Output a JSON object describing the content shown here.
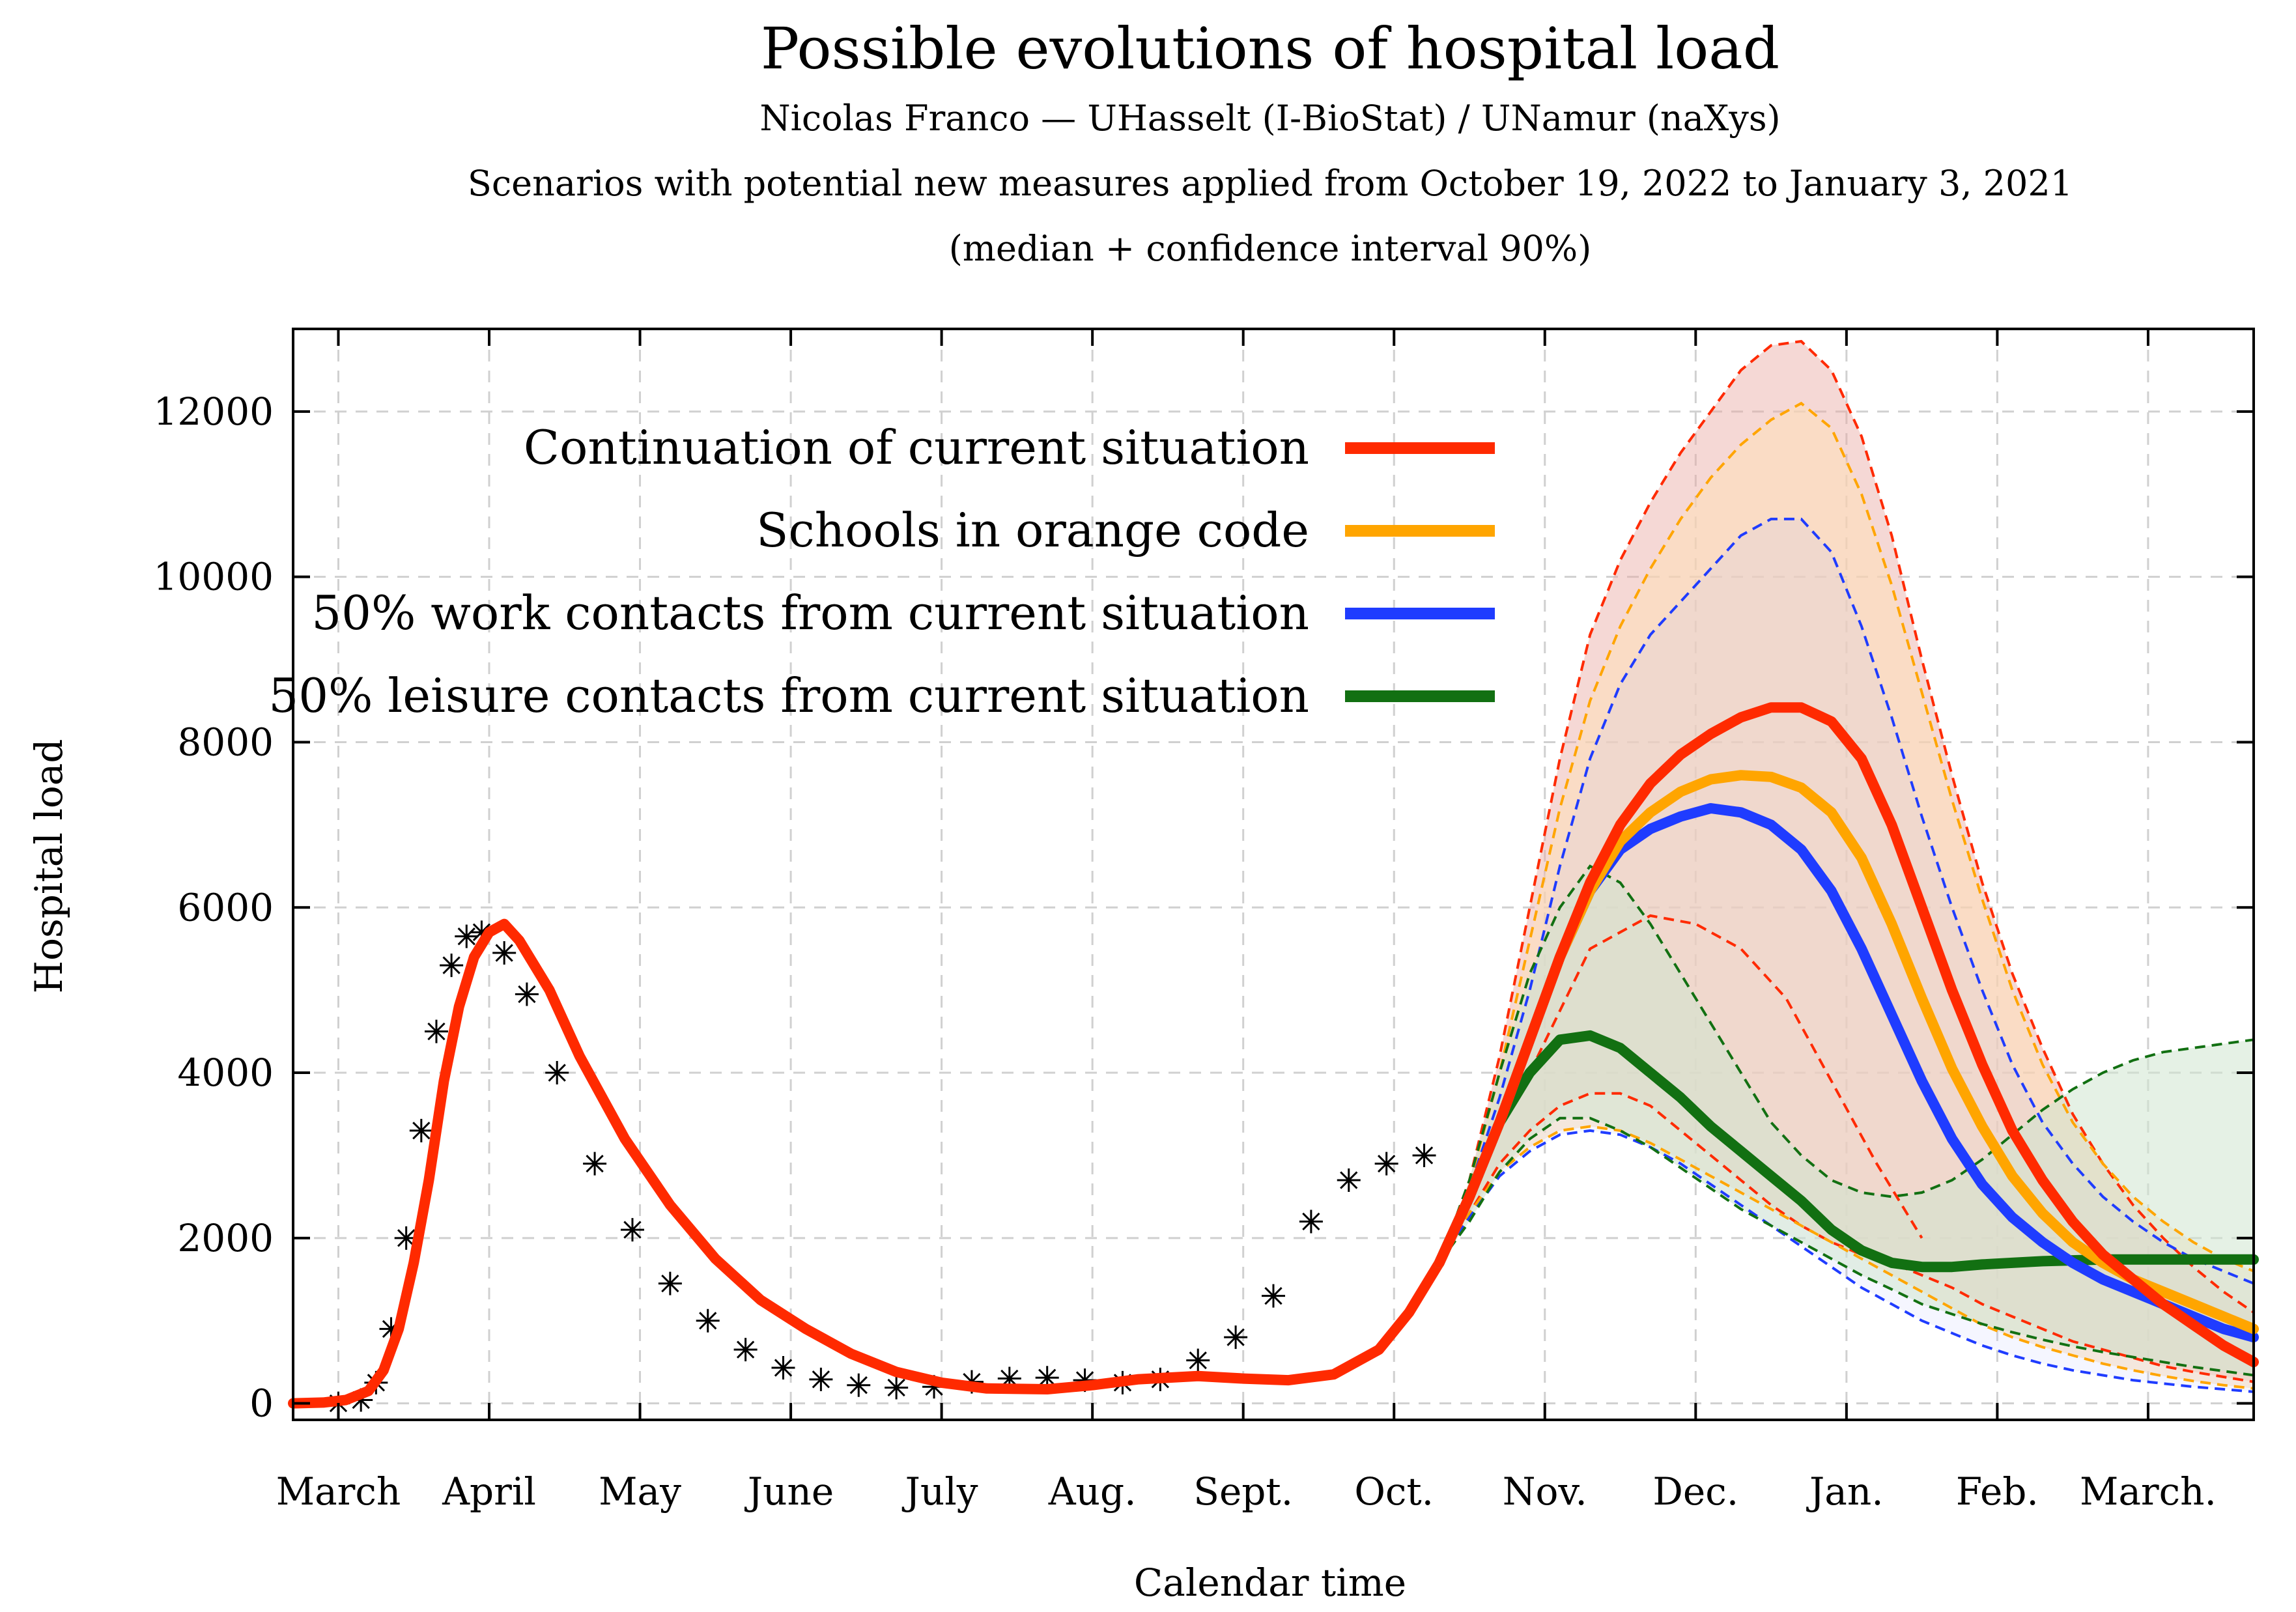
{
  "chart_data": {
    "type": "line",
    "title": "Possible evolutions of hospital load",
    "subtitle_lines": [
      "Nicolas Franco — UHasselt (I-BioStat) / UNamur (naXys)",
      "Scenarios with potential new measures applied from October 19, 2022 to January 3, 2021",
      "(median + confidence interval 90%)"
    ],
    "xlabel": "Calendar time",
    "ylabel": "Hospital load",
    "xlim": [
      0,
      13
    ],
    "ylim": [
      -200,
      13000
    ],
    "grid": true,
    "legend_placement": "top-center",
    "x_ticks": [
      {
        "x": 0.3,
        "label": "March"
      },
      {
        "x": 1.3,
        "label": "April"
      },
      {
        "x": 2.3,
        "label": "May"
      },
      {
        "x": 3.3,
        "label": "June"
      },
      {
        "x": 4.3,
        "label": "July"
      },
      {
        "x": 5.3,
        "label": "Aug."
      },
      {
        "x": 6.3,
        "label": "Sept."
      },
      {
        "x": 7.3,
        "label": "Oct."
      },
      {
        "x": 8.3,
        "label": "Nov."
      },
      {
        "x": 9.3,
        "label": "Dec."
      },
      {
        "x": 10.3,
        "label": "Jan."
      },
      {
        "x": 11.3,
        "label": "Feb."
      },
      {
        "x": 12.3,
        "label": "March."
      }
    ],
    "y_ticks": [
      {
        "y": 0,
        "label": "0"
      },
      {
        "y": 2000,
        "label": "2000"
      },
      {
        "y": 4000,
        "label": "4000"
      },
      {
        "y": 6000,
        "label": "6000"
      },
      {
        "y": 8000,
        "label": "8000"
      },
      {
        "y": 10000,
        "label": "10000"
      },
      {
        "y": 12000,
        "label": "12000"
      }
    ],
    "observed": {
      "marker": "star",
      "x": [
        0.3,
        0.45,
        0.55,
        0.65,
        0.75,
        0.85,
        0.95,
        1.05,
        1.15,
        1.25,
        1.4,
        1.55,
        1.75,
        2.0,
        2.25,
        2.5,
        2.75,
        3.0,
        3.25,
        3.5,
        3.75,
        4.0,
        4.25,
        4.5,
        4.75,
        5.0,
        5.25,
        5.5,
        5.75,
        6.0,
        6.25,
        6.5,
        6.75,
        7.0,
        7.25,
        7.5
      ],
      "y": [
        0,
        40,
        250,
        900,
        2000,
        3300,
        4500,
        5300,
        5650,
        5700,
        5450,
        4950,
        4000,
        2900,
        2100,
        1450,
        1000,
        650,
        430,
        290,
        220,
        190,
        200,
        260,
        300,
        310,
        280,
        250,
        290,
        520,
        800,
        1300,
        2200,
        2700,
        2900,
        3000
      ]
    },
    "fitted": {
      "name": "",
      "color": "#ff2a00",
      "x": [
        0.0,
        0.2,
        0.35,
        0.5,
        0.6,
        0.7,
        0.8,
        0.9,
        1.0,
        1.1,
        1.2,
        1.3,
        1.4,
        1.5,
        1.7,
        1.9,
        2.2,
        2.5,
        2.8,
        3.1,
        3.4,
        3.7,
        4.0,
        4.3,
        4.6,
        5.0,
        5.3,
        5.6,
        6.0,
        6.3,
        6.6,
        6.9,
        7.2,
        7.4,
        7.6
      ],
      "y": [
        0,
        10,
        40,
        150,
        400,
        900,
        1700,
        2700,
        3900,
        4800,
        5400,
        5700,
        5800,
        5600,
        5000,
        4200,
        3200,
        2400,
        1750,
        1250,
        900,
        600,
        380,
        250,
        180,
        170,
        220,
        290,
        330,
        300,
        280,
        350,
        650,
        1100,
        1700
      ]
    },
    "scenarios": [
      {
        "name": "Continuation of current situation",
        "color": "#ff2a00",
        "fill": "#e8a9a2",
        "fill_opacity": 0.45,
        "x": [
          7.6,
          7.8,
          8.0,
          8.2,
          8.4,
          8.6,
          8.8,
          9.0,
          9.2,
          9.4,
          9.6,
          9.8,
          10.0,
          10.2,
          10.4,
          10.6,
          10.8,
          11.0,
          11.2,
          11.4,
          11.6,
          11.8,
          12.0,
          12.2,
          12.4,
          12.6,
          12.8,
          13.0
        ],
        "y": [
          1700,
          2500,
          3400,
          4400,
          5400,
          6300,
          7000,
          7500,
          7850,
          8100,
          8300,
          8420,
          8420,
          8250,
          7800,
          7000,
          6000,
          5000,
          4100,
          3300,
          2700,
          2200,
          1800,
          1500,
          1200,
          950,
          700,
          500
        ],
        "lower": [
          1700,
          2300,
          2900,
          3300,
          3600,
          3750,
          3750,
          3600,
          3300,
          3000,
          2700,
          2400,
          2150,
          1950,
          1800,
          1700,
          1550,
          1400,
          1200,
          1050,
          900,
          750,
          650,
          550,
          450,
          380,
          320,
          260
        ],
        "upper": [
          1700,
          2700,
          4200,
          6000,
          7800,
          9300,
          10200,
          10900,
          11500,
          12000,
          12500,
          12800,
          12850,
          12500,
          11700,
          10500,
          9000,
          7600,
          6300,
          5200,
          4300,
          3500,
          2900,
          2400,
          2000,
          1650,
          1350,
          1100
        ]
      },
      {
        "name": "Schools in orange code",
        "color": "#ffa500",
        "fill": "#fde0b8",
        "fill_opacity": 0.55,
        "x": [
          7.6,
          7.8,
          8.0,
          8.2,
          8.4,
          8.6,
          8.8,
          9.0,
          9.2,
          9.4,
          9.6,
          9.8,
          10.0,
          10.2,
          10.4,
          10.6,
          10.8,
          11.0,
          11.2,
          11.4,
          11.6,
          11.8,
          12.0,
          12.2,
          12.4,
          12.6,
          12.8,
          13.0
        ],
        "y": [
          1700,
          2500,
          3400,
          4400,
          5400,
          6200,
          6800,
          7150,
          7400,
          7550,
          7600,
          7580,
          7450,
          7150,
          6600,
          5800,
          4900,
          4050,
          3350,
          2750,
          2300,
          1950,
          1700,
          1500,
          1350,
          1200,
          1050,
          900
        ],
        "lower": [
          1700,
          2300,
          2800,
          3100,
          3300,
          3350,
          3300,
          3150,
          2950,
          2750,
          2550,
          2350,
          2150,
          1950,
          1750,
          1550,
          1350,
          1150,
          950,
          800,
          680,
          580,
          480,
          400,
          330,
          270,
          220,
          180
        ],
        "upper": [
          1700,
          2650,
          4000,
          5600,
          7200,
          8500,
          9400,
          10100,
          10700,
          11200,
          11600,
          11900,
          12100,
          11800,
          11000,
          9900,
          8600,
          7300,
          6100,
          5000,
          4100,
          3400,
          2900,
          2500,
          2200,
          1950,
          1750,
          1600
        ]
      },
      {
        "name": "50% work contacts from current situation",
        "color": "#1f3cff",
        "fill": "#b9c4ff",
        "fill_opacity": 0.15,
        "x": [
          7.6,
          7.8,
          8.0,
          8.2,
          8.4,
          8.6,
          8.8,
          9.0,
          9.2,
          9.4,
          9.6,
          9.8,
          10.0,
          10.2,
          10.4,
          10.6,
          10.8,
          11.0,
          11.2,
          11.4,
          11.6,
          11.8,
          12.0,
          12.2,
          12.4,
          12.6,
          12.8,
          13.0
        ],
        "y": [
          1700,
          2500,
          3400,
          4400,
          5400,
          6200,
          6700,
          6950,
          7100,
          7200,
          7150,
          7000,
          6700,
          6200,
          5500,
          4700,
          3900,
          3200,
          2650,
          2250,
          1950,
          1700,
          1500,
          1350,
          1200,
          1050,
          900,
          800
        ],
        "lower": [
          1700,
          2250,
          2750,
          3050,
          3250,
          3300,
          3250,
          3100,
          2900,
          2650,
          2400,
          2150,
          1900,
          1650,
          1400,
          1200,
          1000,
          850,
          700,
          580,
          480,
          400,
          340,
          280,
          240,
          200,
          170,
          140
        ],
        "upper": [
          1700,
          2600,
          3700,
          5000,
          6500,
          7800,
          8700,
          9300,
          9700,
          10100,
          10500,
          10700,
          10700,
          10300,
          9400,
          8300,
          7100,
          6000,
          5000,
          4100,
          3400,
          2900,
          2500,
          2200,
          1950,
          1750,
          1600,
          1450
        ]
      },
      {
        "name": "50% leisure contacts from current situation",
        "color": "#127012",
        "fill": "#cfe6cf",
        "fill_opacity": 0.55,
        "x": [
          7.6,
          7.8,
          8.0,
          8.2,
          8.4,
          8.6,
          8.8,
          9.0,
          9.2,
          9.4,
          9.6,
          9.8,
          10.0,
          10.2,
          10.4,
          10.6,
          10.8,
          11.0,
          11.2,
          11.4,
          11.6,
          11.8,
          12.0,
          12.2,
          12.4,
          12.6,
          12.8,
          13.0
        ],
        "y": [
          1700,
          2500,
          3400,
          4000,
          4400,
          4450,
          4300,
          4000,
          3700,
          3350,
          3050,
          2750,
          2450,
          2100,
          1850,
          1700,
          1650,
          1650,
          1680,
          1700,
          1720,
          1730,
          1740,
          1740,
          1740,
          1740,
          1740,
          1740
        ],
        "lower": [
          1700,
          2200,
          2800,
          3200,
          3450,
          3450,
          3300,
          3100,
          2850,
          2600,
          2350,
          2150,
          1950,
          1750,
          1550,
          1380,
          1200,
          1080,
          960,
          860,
          770,
          690,
          620,
          560,
          500,
          440,
          390,
          340
        ],
        "upper": [
          1700,
          2700,
          4000,
          5200,
          6000,
          6500,
          6300,
          5800,
          5200,
          4600,
          4000,
          3400,
          3000,
          2700,
          2550,
          2500,
          2550,
          2700,
          2950,
          3250,
          3550,
          3800,
          4000,
          4150,
          4250,
          4300,
          4350,
          4400
        ]
      }
    ],
    "extra_dashed": [
      {
        "color": "#ff2a00",
        "x": [
          8.2,
          8.6,
          9.0,
          9.3,
          9.6,
          9.9,
          10.2,
          10.5,
          10.8
        ],
        "y": [
          4000,
          5500,
          5900,
          5800,
          5500,
          4900,
          3900,
          2900,
          2000
        ]
      }
    ]
  }
}
